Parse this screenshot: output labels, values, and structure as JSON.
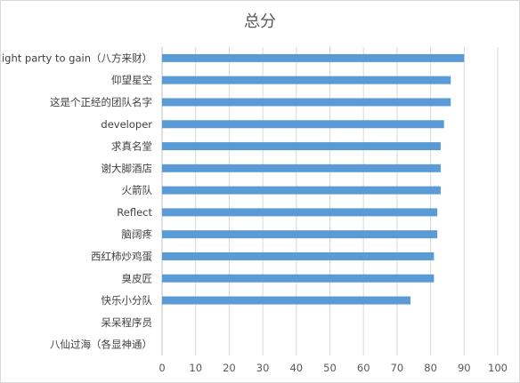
{
  "chart_data": {
    "type": "bar",
    "orientation": "horizontal",
    "title": "总分",
    "xlabel": "",
    "ylabel": "",
    "xlim": [
      0,
      100
    ],
    "x_ticks": [
      "0",
      "10",
      "20",
      "30",
      "40",
      "50",
      "60",
      "70",
      "80",
      "90",
      "100"
    ],
    "grid": true,
    "bar_color": "#5b9bd5",
    "grid_color": "#d9d9d9",
    "categories": [
      "Eight party to gain（八方来财）",
      "仰望星空",
      "这是个正经的团队名字",
      "developer",
      "求真名堂",
      "谢大脚酒店",
      "火箭队",
      "Reflect",
      "脑阔疼",
      "西红柿炒鸡蛋",
      "臭皮匠",
      "快乐小分队",
      "呆呆程序员",
      "八仙过海（各显神通）"
    ],
    "values": [
      90,
      86,
      86,
      84,
      83,
      83,
      83,
      82,
      82,
      81,
      81,
      74,
      0,
      0
    ]
  }
}
